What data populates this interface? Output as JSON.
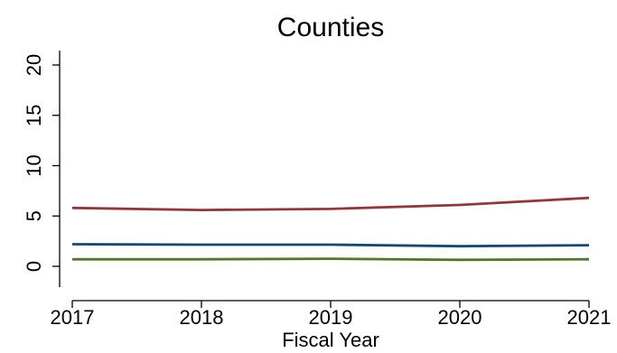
{
  "chart_data": {
    "type": "line",
    "title": "Counties",
    "xlabel": "Fiscal Year",
    "ylabel": "",
    "x": [
      2017,
      2018,
      2019,
      2020,
      2021
    ],
    "xticks": [
      "2017",
      "2018",
      "2019",
      "2020",
      "2021"
    ],
    "xlim": [
      2017,
      2021
    ],
    "yticks": [
      "0",
      "5",
      "10",
      "15",
      "20"
    ],
    "ylim": [
      0,
      20
    ],
    "grid": false,
    "legend": "none",
    "series": [
      {
        "values": [
          5.8,
          5.6,
          5.7,
          6.1,
          6.8
        ],
        "color": "#8b3a3e"
      },
      {
        "values": [
          2.2,
          2.15,
          2.15,
          2.0,
          2.1
        ],
        "color": "#1a476f"
      },
      {
        "values": [
          0.7,
          0.7,
          0.75,
          0.65,
          0.7
        ],
        "color": "#55752f"
      }
    ]
  }
}
